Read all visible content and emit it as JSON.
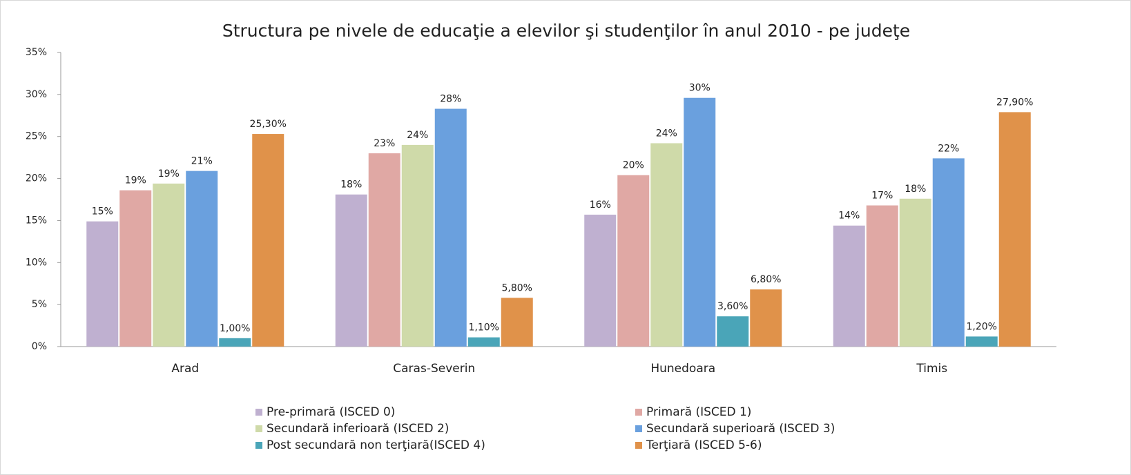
{
  "chart_data": {
    "type": "bar",
    "title": "Structura pe nivele de educaţie a elevilor şi studenţilor în anul 2010 - pe judeţe",
    "categories": [
      "Arad",
      "Caras-Severin",
      "Hunedoara",
      "Timis"
    ],
    "series": [
      {
        "name": "Pre-primară (ISCED 0)",
        "color": "#bfb0d0",
        "values": [
          14.9,
          18.1,
          15.7,
          14.4
        ],
        "value_labels": [
          "15%",
          "18%",
          "16%",
          "14%"
        ]
      },
      {
        "name": "Primară  (ISCED 1)",
        "color": "#e0a8a4",
        "values": [
          18.6,
          23.0,
          20.4,
          16.8
        ],
        "value_labels": [
          "19%",
          "23%",
          "20%",
          "17%"
        ]
      },
      {
        "name": "Secundară inferioară (ISCED 2)",
        "color": "#cfdaa9",
        "values": [
          19.4,
          24.0,
          24.2,
          17.6
        ],
        "value_labels": [
          "19%",
          "24%",
          "24%",
          "18%"
        ]
      },
      {
        "name": "Secundară superioară (ISCED 3)",
        "color": "#6aa0de",
        "values": [
          20.9,
          28.3,
          29.6,
          22.4
        ],
        "value_labels": [
          "21%",
          "28%",
          "30%",
          "22%"
        ]
      },
      {
        "name": "Post secundară non terţiară(ISCED 4)",
        "color": "#4aa5b8",
        "values": [
          1.0,
          1.1,
          3.6,
          1.2
        ],
        "value_labels": [
          "1,00%",
          "1,10%",
          "3,60%",
          "1,20%"
        ]
      },
      {
        "name": "Terţiară (ISCED 5-6)",
        "color": "#e0924a",
        "values": [
          25.3,
          5.8,
          6.8,
          27.9
        ],
        "value_labels": [
          "25,30%",
          "5,80%",
          "6,80%",
          "27,90%"
        ]
      }
    ],
    "ylim": [
      0,
      35
    ],
    "yticks": [
      {
        "value": 0,
        "label": "0%"
      },
      {
        "value": 5,
        "label": "5%"
      },
      {
        "value": 10,
        "label": "10%"
      },
      {
        "value": 15,
        "label": "15%"
      },
      {
        "value": 20,
        "label": "20%"
      },
      {
        "value": 25,
        "label": "25%"
      },
      {
        "value": 30,
        "label": "30%"
      },
      {
        "value": 35,
        "label": "35%"
      }
    ],
    "grid": false,
    "legend": "bottom"
  }
}
